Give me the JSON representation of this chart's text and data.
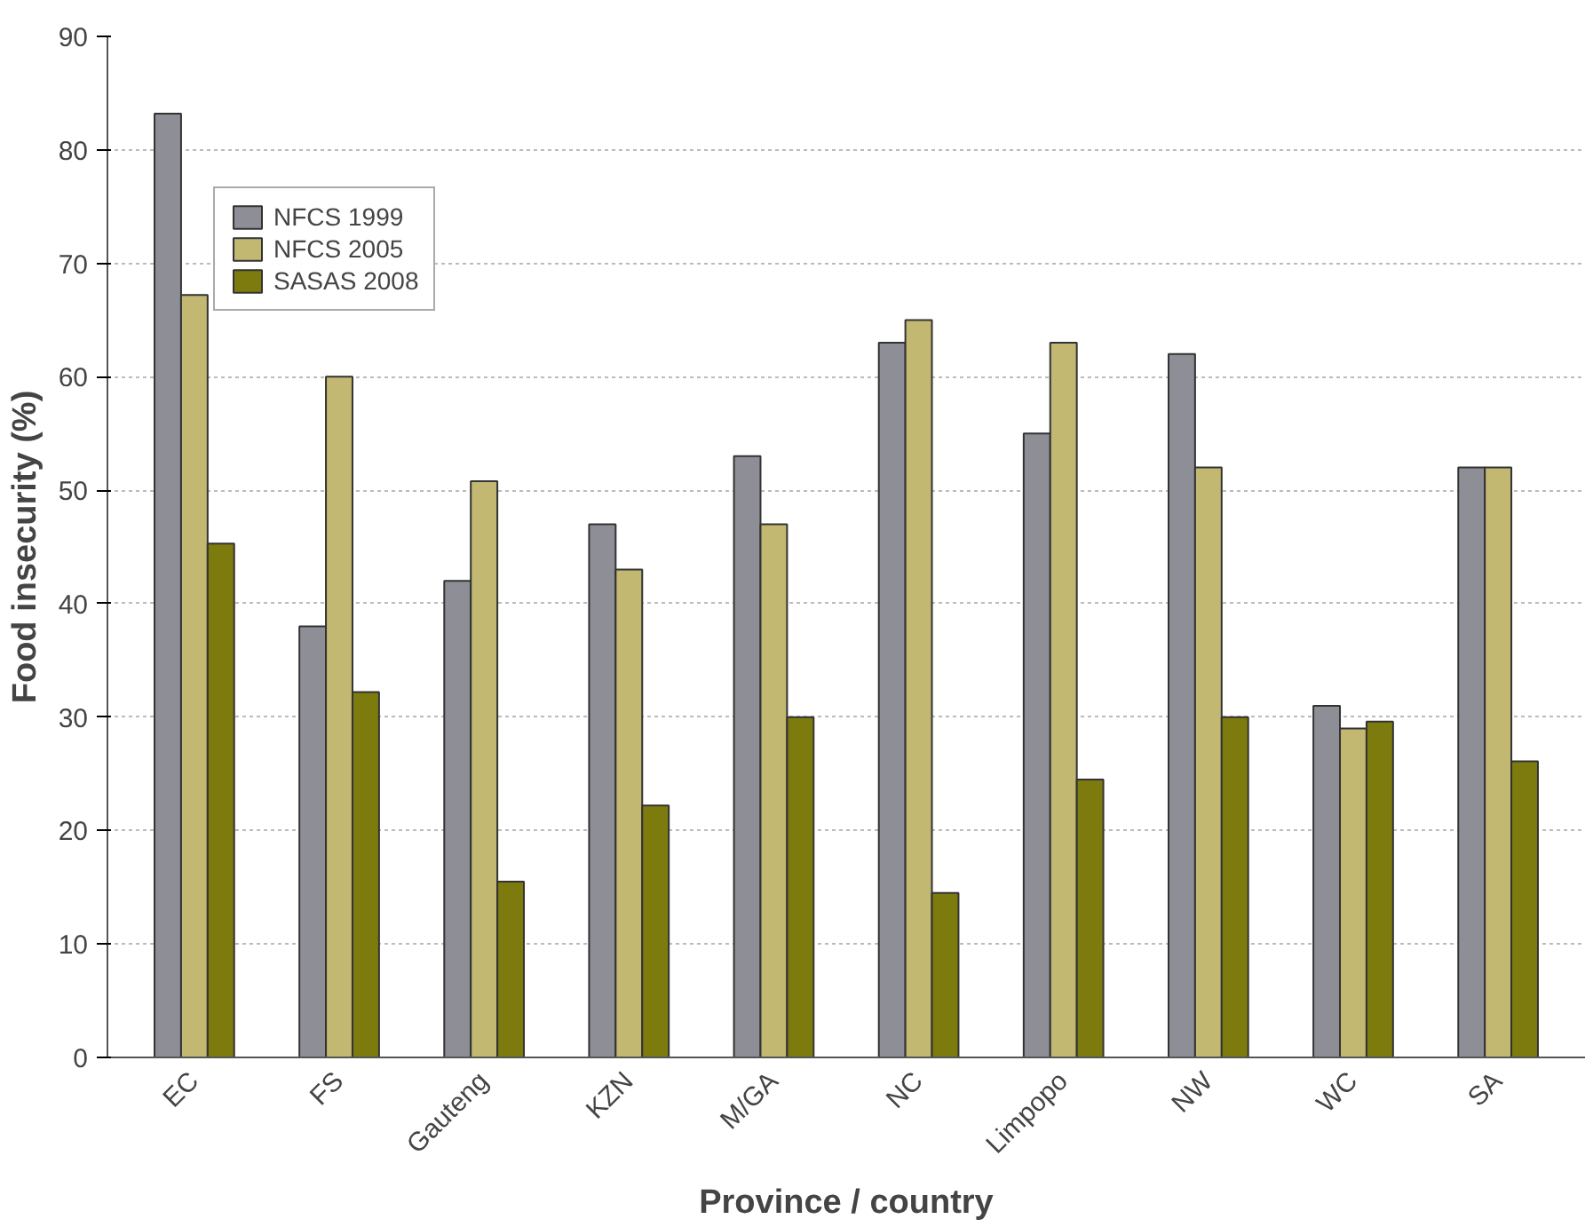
{
  "chart_data": {
    "type": "bar",
    "xlabel": "Province / country",
    "ylabel": "Food insecurity (%)",
    "categories": [
      "EC",
      "FS",
      "Gauteng",
      "KZN",
      "M/GA",
      "NC",
      "Limpopo",
      "NW",
      "WC",
      "SA"
    ],
    "series": [
      {
        "name": "NFCS 1999",
        "color": "#8e8e96",
        "values": [
          83.2,
          38,
          42,
          47,
          53,
          63,
          55,
          62,
          31,
          52
        ]
      },
      {
        "name": "NFCS 2005",
        "color": "#c2b872",
        "values": [
          67.2,
          60,
          50.8,
          43,
          47,
          65,
          63,
          52,
          29,
          52
        ]
      },
      {
        "name": "SASAS 2008",
        "color": "#7d7a0e",
        "values": [
          45.3,
          32.2,
          15.5,
          22.2,
          30,
          14.5,
          24.5,
          30,
          29.6,
          26.1
        ]
      }
    ],
    "ylim": [
      0,
      90
    ],
    "yticks": [
      0,
      10,
      20,
      30,
      40,
      50,
      60,
      70,
      80,
      90
    ],
    "grid": "y",
    "legend": "top left"
  }
}
